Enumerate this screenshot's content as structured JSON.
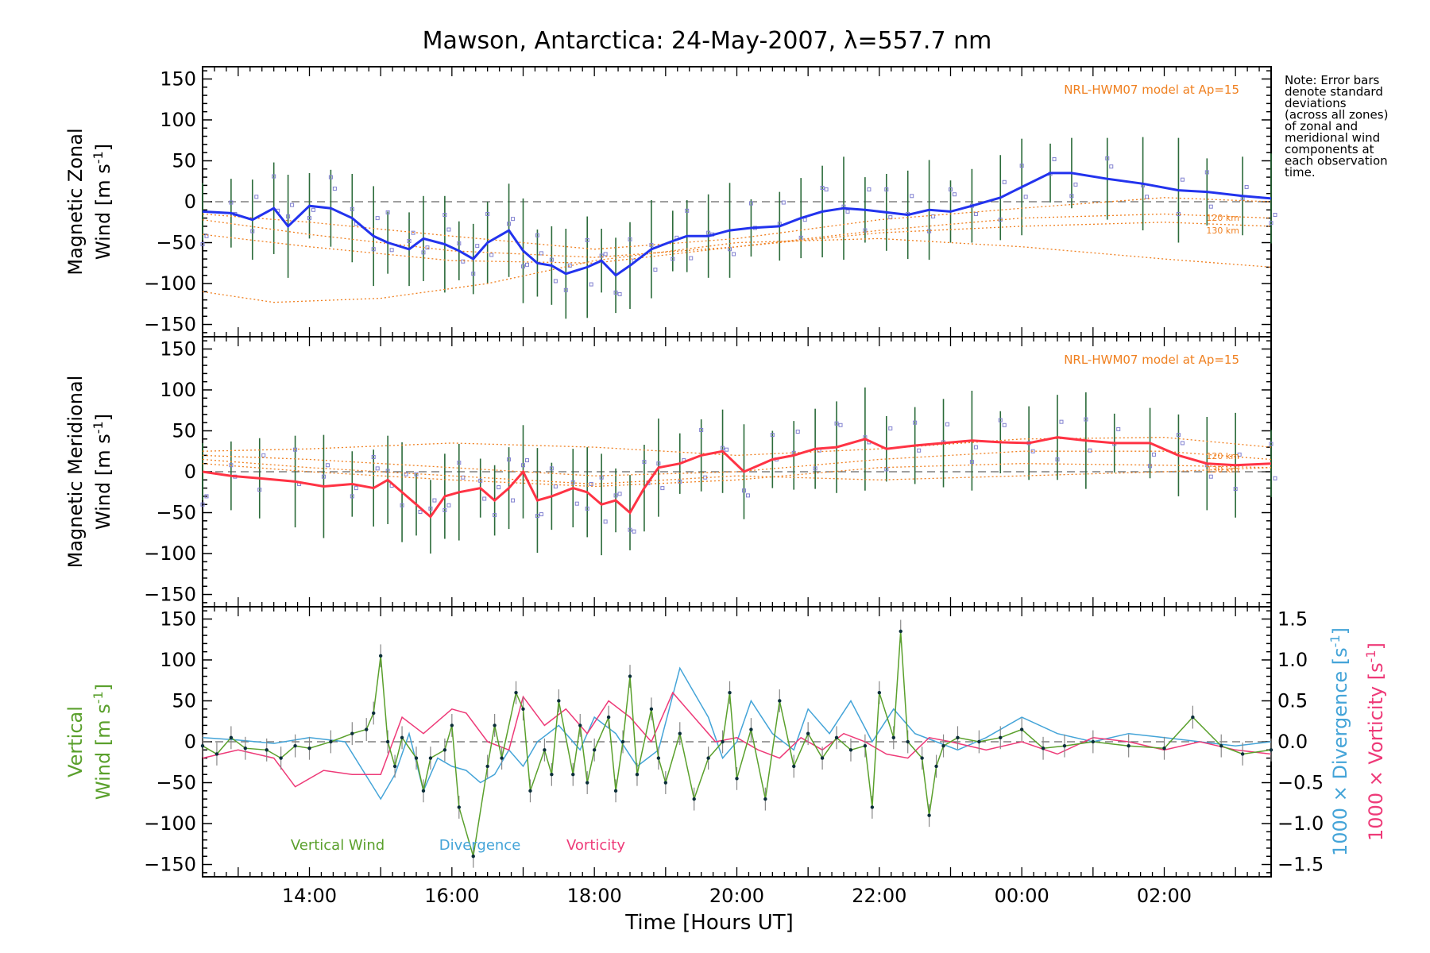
{
  "figure": {
    "title": "Mawson, Antarctica: 24-May-2007, λ=557.7 nm",
    "xlabel": "Time [Hours UT]",
    "xticks": [
      "14:00",
      "16:00",
      "18:00",
      "20:00",
      "22:00",
      "00:00",
      "02:00"
    ],
    "note": [
      "Note: Error bars",
      "denote standard",
      "deviations",
      "(across all zones)",
      "of zonal and",
      "meridional wind",
      "components at",
      "each observation",
      "time."
    ],
    "colors": {
      "zonal": "#2233ee",
      "meridional": "#ff3344",
      "model": "#f08020",
      "vertical": "#5aa02c",
      "divergence": "#44a4d8",
      "vorticity": "#ee3a78",
      "scatter": "#8080d0",
      "errorbar": "#2b6b3a"
    }
  },
  "chart_data": [
    {
      "type": "line",
      "id": "zonal",
      "title": "",
      "ylabel": "Magnetic Zonal Wind [m s⁻¹]",
      "ylabel_line1": "Magnetic Zonal",
      "ylabel_line2": "Wind [m s",
      "ylabel_unit_sup": "-1",
      "ylabel_close": "]",
      "xlim": [
        12.5,
        27.5
      ],
      "ylim": [
        -165,
        165
      ],
      "yticks": [
        "150",
        "100",
        "50",
        "0",
        "−50",
        "−100",
        "−150"
      ],
      "model_label": "NRL-HWM07 model at Ap=15",
      "model_curve_labels": [
        "120 km",
        "130 km"
      ],
      "series": [
        {
          "name": "Magnetic Zonal Wind",
          "x": [
            12.5,
            12.9,
            13.2,
            13.5,
            13.7,
            14.0,
            14.3,
            14.6,
            14.9,
            15.1,
            15.4,
            15.6,
            15.9,
            16.1,
            16.3,
            16.5,
            16.8,
            17.0,
            17.2,
            17.4,
            17.6,
            17.9,
            18.1,
            18.3,
            18.5,
            18.8,
            19.1,
            19.3,
            19.6,
            19.9,
            20.2,
            20.6,
            20.9,
            21.2,
            21.5,
            21.8,
            22.1,
            22.4,
            22.7,
            23.0,
            23.3,
            23.7,
            24.0,
            24.4,
            24.7,
            25.2,
            25.7,
            26.2,
            26.6,
            27.1,
            27.5
          ],
          "y": [
            -12,
            -14,
            -22,
            -8,
            -30,
            -5,
            -8,
            -20,
            -42,
            -50,
            -58,
            -45,
            -52,
            -60,
            -70,
            -50,
            -35,
            -60,
            -75,
            -78,
            -88,
            -80,
            -72,
            -90,
            -78,
            -58,
            -48,
            -42,
            -42,
            -35,
            -32,
            -30,
            -20,
            -12,
            -8,
            -10,
            -13,
            -16,
            -10,
            -12,
            -5,
            5,
            18,
            35,
            35,
            28,
            22,
            14,
            12,
            7,
            4
          ]
        },
        {
          "name": "Model 120 km",
          "x": [
            12.5,
            14,
            16,
            18,
            20,
            22,
            24,
            26,
            27.5
          ],
          "y": [
            -22,
            -40,
            -60,
            -68,
            -55,
            -35,
            -20,
            -15,
            -20
          ]
        },
        {
          "name": "Model 130 km",
          "x": [
            12.5,
            14,
            16,
            18,
            20,
            22,
            24,
            26,
            27.5
          ],
          "y": [
            -40,
            -55,
            -72,
            -75,
            -55,
            -38,
            -30,
            -25,
            -30
          ]
        },
        {
          "name": "Model low",
          "x": [
            12.5,
            13.5,
            15,
            16.5,
            18,
            20,
            22,
            24,
            26,
            27.5
          ],
          "y": [
            -110,
            -123,
            -118,
            -100,
            -72,
            -50,
            -45,
            -55,
            -70,
            -80
          ]
        },
        {
          "name": "Model upper",
          "x": [
            12.5,
            14,
            16,
            18,
            20,
            22,
            24,
            26,
            27.5
          ],
          "y": [
            -15,
            -25,
            -42,
            -58,
            -45,
            -22,
            -8,
            5,
            0
          ]
        }
      ]
    },
    {
      "type": "line",
      "id": "meridional",
      "title": "",
      "ylabel": "Magnetic Meridional Wind [m s⁻¹]",
      "ylabel_line1": "Magnetic Meridional",
      "ylabel_line2": "Wind [m s",
      "ylabel_unit_sup": "-1",
      "ylabel_close": "]",
      "xlim": [
        12.5,
        27.5
      ],
      "ylim": [
        -165,
        165
      ],
      "yticks": [
        "150",
        "100",
        "50",
        "0",
        "−50",
        "−100",
        "−150"
      ],
      "model_label": "NRL-HWM07 model at Ap=15",
      "model_curve_labels": [
        "120 km",
        "130 km"
      ],
      "series": [
        {
          "name": "Magnetic Meridional Wind",
          "x": [
            12.5,
            12.9,
            13.3,
            13.8,
            14.2,
            14.6,
            14.9,
            15.1,
            15.3,
            15.5,
            15.7,
            15.9,
            16.1,
            16.4,
            16.6,
            16.8,
            17.0,
            17.2,
            17.4,
            17.7,
            17.9,
            18.1,
            18.3,
            18.5,
            18.7,
            18.9,
            19.2,
            19.5,
            19.8,
            20.1,
            20.5,
            20.8,
            21.1,
            21.4,
            21.8,
            22.1,
            22.5,
            22.9,
            23.3,
            23.7,
            24.1,
            24.5,
            24.9,
            25.3,
            25.8,
            26.2,
            26.6,
            27.0,
            27.5
          ],
          "y": [
            0,
            -5,
            -8,
            -12,
            -18,
            -15,
            -20,
            -10,
            -25,
            -40,
            -55,
            -30,
            -25,
            -20,
            -35,
            -20,
            0,
            -35,
            -30,
            -20,
            -25,
            -40,
            -35,
            -50,
            -20,
            5,
            10,
            20,
            25,
            0,
            15,
            20,
            28,
            30,
            40,
            28,
            32,
            35,
            38,
            36,
            35,
            42,
            38,
            35,
            35,
            20,
            10,
            8,
            10
          ]
        },
        {
          "name": "Model 120 km",
          "x": [
            12.5,
            14,
            16,
            18,
            20,
            22,
            24,
            26,
            27.5
          ],
          "y": [
            20,
            15,
            5,
            -5,
            0,
            15,
            25,
            25,
            15
          ]
        },
        {
          "name": "Model 130 km",
          "x": [
            12.5,
            14,
            16,
            18,
            20,
            22,
            24,
            26,
            27.5
          ],
          "y": [
            10,
            0,
            -10,
            -18,
            -10,
            5,
            10,
            8,
            5
          ]
        },
        {
          "name": "Model upper",
          "x": [
            12.5,
            14,
            16,
            18,
            20,
            22,
            24,
            26,
            27.5
          ],
          "y": [
            25,
            28,
            35,
            30,
            20,
            28,
            40,
            42,
            30
          ]
        },
        {
          "name": "Model low",
          "x": [
            12.5,
            14,
            16,
            18,
            20,
            22,
            24,
            26,
            27.5
          ],
          "y": [
            15,
            5,
            -5,
            -15,
            -5,
            -10,
            -5,
            0,
            5
          ]
        }
      ]
    },
    {
      "type": "line",
      "id": "vertical",
      "ylabel_left_line1": "Vertical",
      "ylabel_left_line2": "Wind [m s",
      "ylabel_left_sup": "-1",
      "ylabel_left_close": "]",
      "ylabel_right1": "1000 × Divergence [s",
      "ylabel_right2": "1000 × Vorticity [s",
      "ylabel_right_sup": "-1",
      "ylabel_right_close": "]",
      "xlim": [
        12.5,
        27.5
      ],
      "ylim": [
        -165,
        165
      ],
      "y2lim": [
        -1.65,
        1.65
      ],
      "yticks": [
        "150",
        "100",
        "50",
        "0",
        "−50",
        "−100",
        "−150"
      ],
      "y2ticks": [
        "1.5",
        "1.0",
        "0.5",
        "0.0",
        "−0.5",
        "−1.0",
        "−1.5"
      ],
      "legend": [
        "Vertical Wind",
        "Divergence",
        "Vorticity"
      ],
      "series": [
        {
          "name": "Vertical Wind",
          "axis": "left",
          "x": [
            12.5,
            12.7,
            12.9,
            13.1,
            13.4,
            13.6,
            13.8,
            14.0,
            14.3,
            14.6,
            14.8,
            14.9,
            15.0,
            15.1,
            15.2,
            15.3,
            15.5,
            15.6,
            15.7,
            15.9,
            16.0,
            16.1,
            16.3,
            16.5,
            16.6,
            16.7,
            16.9,
            17.0,
            17.1,
            17.3,
            17.4,
            17.5,
            17.7,
            17.8,
            17.9,
            18.0,
            18.2,
            18.3,
            18.4,
            18.5,
            18.6,
            18.8,
            18.9,
            19.0,
            19.2,
            19.4,
            19.6,
            19.8,
            19.9,
            20.0,
            20.2,
            20.4,
            20.6,
            20.8,
            21.0,
            21.2,
            21.4,
            21.6,
            21.8,
            21.9,
            22.0,
            22.2,
            22.3,
            22.4,
            22.6,
            22.7,
            22.8,
            22.9,
            23.1,
            23.4,
            23.7,
            24.0,
            24.3,
            24.6,
            25.0,
            25.5,
            26.0,
            26.4,
            26.8,
            27.1,
            27.5
          ],
          "y": [
            -5,
            -15,
            5,
            -8,
            -10,
            -20,
            -5,
            -8,
            0,
            10,
            15,
            35,
            105,
            0,
            -30,
            5,
            -20,
            -60,
            -20,
            -10,
            20,
            -80,
            -140,
            -30,
            20,
            -20,
            60,
            40,
            -60,
            -10,
            -40,
            50,
            -40,
            20,
            -50,
            -10,
            30,
            -60,
            0,
            80,
            -40,
            40,
            -20,
            -50,
            10,
            -70,
            -20,
            0,
            60,
            -45,
            15,
            -70,
            50,
            -30,
            10,
            -20,
            5,
            -10,
            -5,
            -80,
            60,
            5,
            135,
            0,
            -20,
            -90,
            -30,
            -5,
            5,
            0,
            5,
            15,
            -8,
            -5,
            0,
            -5,
            -8,
            30,
            -5,
            -15,
            -10
          ]
        },
        {
          "name": "Divergence",
          "axis": "right",
          "x": [
            12.5,
            13.0,
            13.5,
            14.0,
            14.5,
            15.0,
            15.2,
            15.4,
            15.6,
            15.8,
            16.0,
            16.2,
            16.4,
            16.6,
            16.8,
            17.0,
            17.2,
            17.5,
            17.8,
            18.0,
            18.3,
            18.6,
            18.9,
            19.2,
            19.4,
            19.6,
            19.8,
            20.0,
            20.2,
            20.5,
            20.8,
            21.0,
            21.3,
            21.6,
            21.9,
            22.2,
            22.5,
            22.8,
            23.1,
            23.5,
            24.0,
            24.5,
            25.0,
            25.5,
            26.0,
            26.5,
            27.0,
            27.5
          ],
          "y": [
            0.05,
            0.02,
            -0.02,
            0.05,
            0.0,
            -0.7,
            -0.4,
            0.1,
            -0.6,
            -0.2,
            -0.3,
            -0.35,
            -0.5,
            -0.4,
            -0.1,
            -0.3,
            0.0,
            0.2,
            -0.1,
            0.3,
            0.1,
            -0.3,
            -0.1,
            0.9,
            0.6,
            0.3,
            -0.2,
            0.0,
            0.5,
            0.1,
            -0.1,
            0.4,
            0.1,
            0.5,
            0.0,
            0.4,
            0.1,
            0.0,
            -0.1,
            0.05,
            0.3,
            0.1,
            0.0,
            0.1,
            0.05,
            0.0,
            -0.05,
            0.0
          ]
        },
        {
          "name": "Vorticity",
          "axis": "right",
          "x": [
            12.5,
            13.0,
            13.5,
            13.8,
            14.2,
            14.6,
            15.0,
            15.3,
            15.6,
            16.0,
            16.2,
            16.5,
            16.8,
            17.0,
            17.3,
            17.6,
            17.9,
            18.2,
            18.5,
            18.8,
            19.1,
            19.4,
            19.7,
            20.0,
            20.3,
            20.6,
            20.9,
            21.2,
            21.5,
            21.8,
            22.1,
            22.4,
            22.7,
            23.0,
            23.5,
            24.0,
            24.5,
            25.0,
            25.5,
            26.0,
            26.5,
            27.0,
            27.5
          ],
          "y": [
            -0.2,
            -0.1,
            -0.2,
            -0.55,
            -0.35,
            -0.4,
            -0.4,
            0.3,
            0.1,
            0.4,
            0.35,
            0.0,
            -0.1,
            0.55,
            0.2,
            0.4,
            0.1,
            0.5,
            0.3,
            0.0,
            0.6,
            0.3,
            0.0,
            0.05,
            -0.1,
            -0.2,
            0.05,
            -0.1,
            0.1,
            0.0,
            -0.15,
            -0.2,
            0.05,
            0.0,
            -0.1,
            0.0,
            -0.15,
            0.05,
            0.0,
            -0.1,
            0.0,
            -0.1,
            -0.15
          ]
        }
      ]
    }
  ]
}
